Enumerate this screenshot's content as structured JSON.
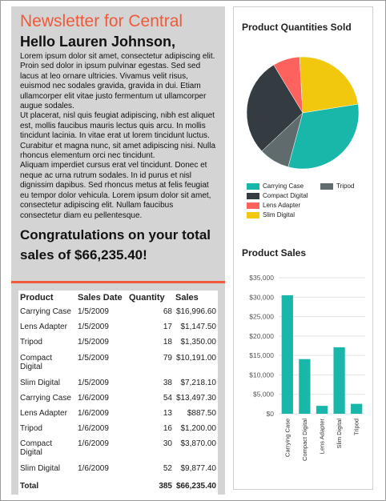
{
  "newsletter": {
    "title": "Newsletter for Central",
    "greeting": "Hello Lauren Johnson,",
    "paragraphs": [
      "Lorem ipsum dolor sit amet, consectetur adipiscing elit. Proin sed dolor in ipsum pulvinar egestas. Sed sed lacus at leo ornare ultricies. Vivamus velit risus, euismod nec sodales gravida, gravida in dui. Etiam ullamcorper elit vitae justo fermentum ut ullamcorper augue sodales.",
      "Ut placerat, nisl quis feugiat adipiscing, nibh est aliquet est, mollis faucibus mauris lectus quis arcu. In mollis tincidunt lacinia. In vitae erat ut lorem tincidunt luctus. Curabitur et magna nunc, sit amet adipiscing nisi. Nulla rhoncus elementum orci nec tincidunt.",
      "Aliquam imperdiet cursus erat vel tincidunt. Donec et neque ac urna rutrum sodales. In id purus et nisl dignissim dapibus. Sed rhoncus metus at felis feugiat eu tempor dolor vehicula. Lorem ipsum dolor sit amet, consectetur adipiscing elit. Nullam faucibus consectetur diam eu pellentesque."
    ],
    "congrats": "Congratulations on your total sales of $66,235.40!"
  },
  "sales_table": {
    "headers": [
      "Product",
      "Sales Date",
      "Quantity",
      "Sales"
    ],
    "rows": [
      [
        "Carrying Case",
        "1/5/2009",
        "68",
        "$16,996.60"
      ],
      [
        "Lens Adapter",
        "1/5/2009",
        "17",
        "$1,147.50"
      ],
      [
        "Tripod",
        "1/5/2009",
        "18",
        "$1,350.00"
      ],
      [
        "Compact Digital",
        "1/5/2009",
        "79",
        "$10,191.00"
      ],
      [
        "Slim Digital",
        "1/5/2009",
        "38",
        "$7,218.10"
      ],
      [
        "Carrying Case",
        "1/6/2009",
        "54",
        "$13,497.30"
      ],
      [
        "Lens Adapter",
        "1/6/2009",
        "13",
        "$887.50"
      ],
      [
        "Tripod",
        "1/6/2009",
        "16",
        "$1,200.00"
      ],
      [
        "Compact Digital",
        "1/6/2009",
        "30",
        "$3,870.00"
      ],
      [
        "Slim Digital",
        "1/6/2009",
        "52",
        "$9,877.40"
      ]
    ],
    "total": [
      "Total",
      "",
      "385",
      "$66,235.40"
    ]
  },
  "colors": {
    "accent": "#f05a3a",
    "teal": "#19b7a9",
    "charcoal": "#343c42",
    "salmon": "#fd625e",
    "yellow": "#f2c80f",
    "gray": "#5f6b6d"
  },
  "chart_data": [
    {
      "type": "pie",
      "title": "Product Quantities Sold",
      "categories": [
        "Carrying Case",
        "Tripod",
        "Compact Digital",
        "Lens Adapter",
        "Slim Digital"
      ],
      "values": [
        122,
        34,
        109,
        30,
        90
      ],
      "colors": [
        "#19b7a9",
        "#5f6b6d",
        "#343c42",
        "#fd625e",
        "#f2c80f"
      ],
      "legend": "bottom"
    },
    {
      "type": "bar",
      "title": "Product Sales",
      "categories": [
        "Carrying Case",
        "Compact Digital",
        "Lens Adapter",
        "Slim Digital",
        "Tripod"
      ],
      "values": [
        30494,
        14061,
        2035,
        17096,
        2550
      ],
      "ylim": [
        0,
        35000
      ],
      "yticks": [
        "$0",
        "$5,000",
        "$10,000",
        "$15,000",
        "$20,000",
        "$25,000",
        "$30,000",
        "$35,000"
      ],
      "color": "#19b7a9",
      "grid": true
    }
  ]
}
